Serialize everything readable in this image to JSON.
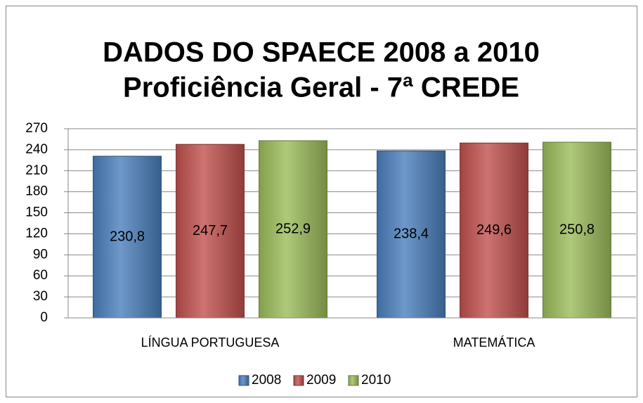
{
  "chart_data": {
    "type": "bar",
    "title": [
      "DADOS DO SPAECE 2008 a 2010",
      "Proficiência Geral - 7ª CREDE"
    ],
    "categories": [
      "LÍNGUA PORTUGUESA",
      "MATEMÁTICA"
    ],
    "series": [
      {
        "name": "2008",
        "color": "#4a7ebb",
        "values": [
          230.8,
          238.4
        ],
        "value_labels": [
          "230,8",
          "238,4"
        ]
      },
      {
        "name": "2009",
        "color": "#c0504d",
        "values": [
          247.7,
          249.6
        ],
        "value_labels": [
          "247,7",
          "249,6"
        ]
      },
      {
        "name": "2010",
        "color": "#9bbb59",
        "values": [
          252.9,
          250.8
        ],
        "value_labels": [
          "252,9",
          "250,8"
        ]
      }
    ],
    "ylim": [
      0,
      270
    ],
    "yticks": [
      0,
      30,
      60,
      90,
      120,
      150,
      180,
      210,
      240,
      270
    ],
    "grid": true,
    "legend": "bottom"
  }
}
